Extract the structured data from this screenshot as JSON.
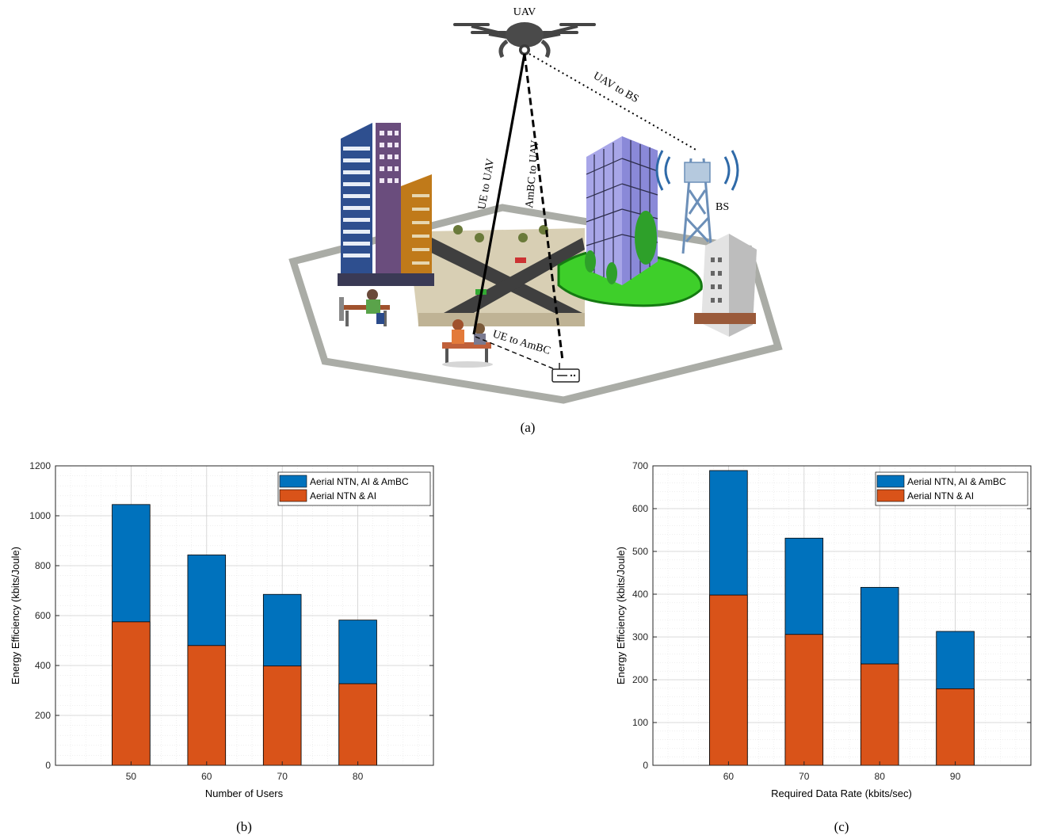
{
  "scenario": {
    "caption": "(a)",
    "labels": {
      "uav": "UAV",
      "bs": "BS",
      "ue_to_uav": "UE to UAV",
      "ambc_to_uav": "AmBC to UAV",
      "uav_to_bs": "UAV to BS",
      "ue_to_ambc": "UE to AmBC"
    }
  },
  "chart_data": [
    {
      "type": "bar",
      "caption": "(b)",
      "xlabel": "Number of Users",
      "ylabel": "Energy Efficiency (kbits/Joule)",
      "categories": [
        "50",
        "60",
        "70",
        "80"
      ],
      "xlim": [
        40,
        90
      ],
      "ylim": [
        0,
        1200
      ],
      "yticks": [
        0,
        200,
        400,
        600,
        800,
        1000,
        1200
      ],
      "grid": true,
      "legend_position": "top-right",
      "series": [
        {
          "name": "Aerial NTN, AI & AmBC",
          "color": "#0072BD",
          "values": [
            1045,
            843,
            685,
            582
          ]
        },
        {
          "name": "Aerial NTN & AI",
          "color": "#D95319",
          "values": [
            575,
            480,
            398,
            327
          ]
        }
      ]
    },
    {
      "type": "bar",
      "caption": "(c)",
      "xlabel": "Required Data Rate (kbits/sec)",
      "ylabel": "Energy Efficiency (kbits/Joule)",
      "categories": [
        "60",
        "70",
        "80",
        "90"
      ],
      "xlim": [
        50,
        100
      ],
      "ylim": [
        0,
        700
      ],
      "yticks": [
        0,
        100,
        200,
        300,
        400,
        500,
        600,
        700
      ],
      "grid": true,
      "legend_position": "top-right",
      "series": [
        {
          "name": "Aerial NTN, AI & AmBC",
          "color": "#0072BD",
          "values": [
            689,
            531,
            416,
            313
          ]
        },
        {
          "name": "Aerial NTN & AI",
          "color": "#D95319",
          "values": [
            398,
            306,
            237,
            179
          ]
        }
      ]
    }
  ]
}
